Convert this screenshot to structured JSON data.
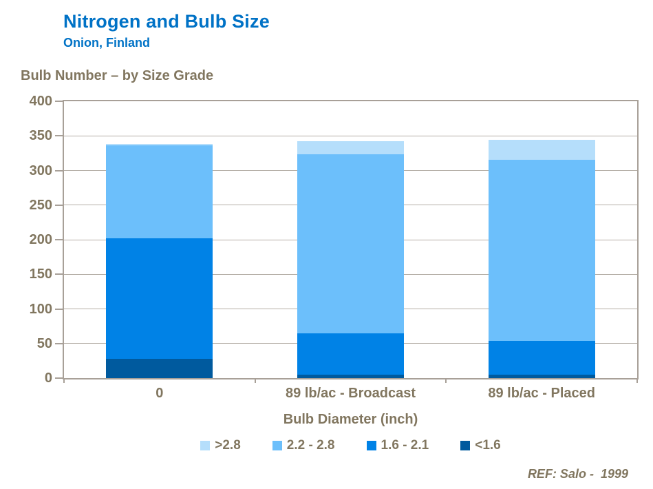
{
  "header": {
    "title": "Nitrogen and Bulb Size",
    "subtitle": "Onion, Finland"
  },
  "chart_heading": "Bulb Number – by Size Grade",
  "footer": {
    "ref": "REF: Salo -  1999"
  },
  "colors": {
    "title_blue": "#0072C6",
    "text_taupe": "#81765F",
    "gridline": "#B3ACA4",
    "axis_border": "#A8A098"
  },
  "chart_data": {
    "type": "bar",
    "stacked": true,
    "title": "Bulb Number – by Size Grade",
    "xlabel": "Bulb Diameter (inch)",
    "ylabel": "",
    "ylim": [
      0,
      400
    ],
    "ytick_interval": 50,
    "ytick_labels": [
      "0",
      "50",
      "100",
      "150",
      "200",
      "250",
      "300",
      "350",
      "400"
    ],
    "grid": true,
    "legend_position": "bottom",
    "categories": [
      "0",
      "89 lb/ac - Broadcast",
      "89 lb/ac - Placed"
    ],
    "series": [
      {
        "name": "<1.6",
        "color": "#005A9E",
        "values": [
          28,
          5,
          5
        ]
      },
      {
        "name": "1.6 - 2.1",
        "color": "#0082E6",
        "values": [
          174,
          60,
          49
        ]
      },
      {
        "name": "2.2 - 2.8",
        "color": "#6CBFFB",
        "values": [
          134,
          258,
          261
        ]
      },
      {
        "name": ">2.8",
        "color": "#B5DEFB",
        "values": [
          2,
          19,
          29
        ]
      }
    ],
    "totals": [
      338,
      342,
      344
    ],
    "legend_order": [
      ">2.8",
      "2.2 - 2.8",
      "1.6 - 2.1",
      "<1.6"
    ]
  }
}
